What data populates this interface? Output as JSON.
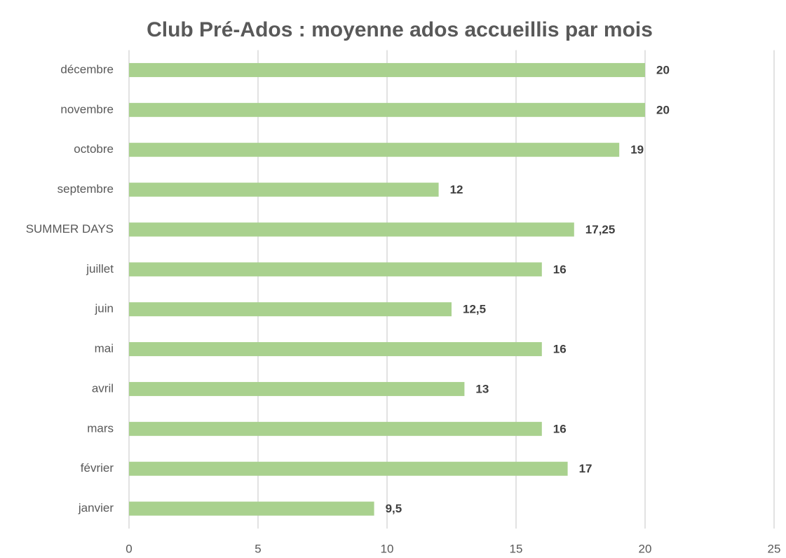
{
  "chart_data": {
    "type": "bar",
    "horizontal": true,
    "title": "Club Pré-Ados : moyenne ados accueillis par mois",
    "categories": [
      "janvier",
      "février",
      "mars",
      "avril",
      "mai",
      "juin",
      "juillet",
      "SUMMER DAYS",
      "septembre",
      "octobre",
      "novembre",
      "décembre"
    ],
    "values": [
      9.5,
      17,
      16,
      13,
      16,
      12.5,
      16,
      17.25,
      12,
      19,
      20,
      20
    ],
    "value_labels": [
      "9,5",
      "17",
      "16",
      "13",
      "16",
      "12,5",
      "16",
      "17,25",
      "12",
      "19",
      "20",
      "20"
    ],
    "color": "#a9d18e",
    "xlim": [
      0,
      25
    ],
    "xticks": [
      0,
      5,
      10,
      15,
      20,
      25
    ],
    "grid": true
  }
}
